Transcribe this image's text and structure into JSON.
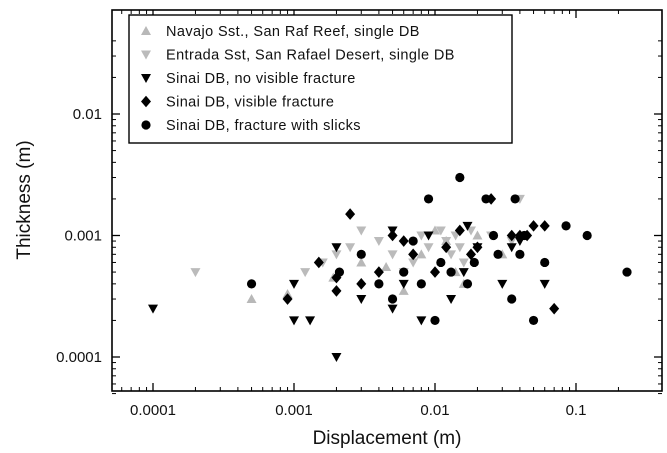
{
  "chart_data": {
    "type": "scatter",
    "xlabel": "Displacement (m)",
    "ylabel": "Thickness (m)",
    "x_scale": "log",
    "y_scale": "log",
    "xlim": [
      5e-05,
      0.3
    ],
    "ylim": [
      4e-05,
      0.05
    ],
    "x_ticks": [
      0.0001,
      0.001,
      0.01,
      0.1
    ],
    "x_tick_labels": [
      "0.0001",
      "0.001",
      "0.01",
      "0.1"
    ],
    "y_ticks": [
      0.0001,
      0.001,
      0.01
    ],
    "y_tick_labels": [
      "0.0001",
      "0.001",
      "0.01"
    ],
    "grid": false,
    "legend_position": "top-left",
    "series": [
      {
        "name": "Navajo Sst., San Raf Reef, single DB",
        "marker": "triangle-up",
        "color": "#b8b8b8",
        "points": [
          [
            0.0005,
            0.0003
          ],
          [
            0.0009,
            0.00033
          ],
          [
            0.0019,
            0.00045
          ],
          [
            0.003,
            0.0006
          ],
          [
            0.0045,
            0.00055
          ],
          [
            0.006,
            0.00035
          ],
          [
            0.008,
            0.0007
          ],
          [
            0.01,
            0.0011
          ],
          [
            0.012,
            0.0009
          ],
          [
            0.014,
            0.0005
          ],
          [
            0.016,
            0.0004
          ],
          [
            0.02,
            0.001
          ],
          [
            0.03,
            0.0007
          ]
        ]
      },
      {
        "name": "Entrada Sst, San Rafael Desert, single DB",
        "marker": "triangle-down",
        "color": "#bbbbbb",
        "points": [
          [
            0.0002,
            0.0005
          ],
          [
            0.0012,
            0.0005
          ],
          [
            0.0016,
            0.0006
          ],
          [
            0.002,
            0.0007
          ],
          [
            0.0025,
            0.0008
          ],
          [
            0.003,
            0.0011
          ],
          [
            0.004,
            0.0009
          ],
          [
            0.005,
            0.0007
          ],
          [
            0.006,
            0.0005
          ],
          [
            0.007,
            0.0006
          ],
          [
            0.008,
            0.001
          ],
          [
            0.009,
            0.0008
          ],
          [
            0.011,
            0.0011
          ],
          [
            0.012,
            0.0009
          ],
          [
            0.013,
            0.0007
          ],
          [
            0.014,
            0.001
          ],
          [
            0.015,
            0.0008
          ],
          [
            0.016,
            0.0006
          ],
          [
            0.018,
            0.0011
          ],
          [
            0.025,
            0.001
          ],
          [
            0.035,
            0.0009
          ],
          [
            0.04,
            0.002
          ]
        ]
      },
      {
        "name": "Sinai DB, no visible fracture",
        "marker": "triangle-down",
        "color": "#000000",
        "points": [
          [
            0.0001,
            0.00025
          ],
          [
            0.001,
            0.0004
          ],
          [
            0.001,
            0.0002
          ],
          [
            0.0013,
            0.0002
          ],
          [
            0.002,
            0.0001
          ],
          [
            0.002,
            0.0008
          ],
          [
            0.003,
            0.0003
          ],
          [
            0.005,
            0.00025
          ],
          [
            0.005,
            0.0011
          ],
          [
            0.006,
            0.0004
          ],
          [
            0.008,
            0.0002
          ],
          [
            0.009,
            0.001
          ],
          [
            0.013,
            0.0003
          ],
          [
            0.016,
            0.0005
          ],
          [
            0.017,
            0.0012
          ],
          [
            0.02,
            0.0008
          ],
          [
            0.03,
            0.0004
          ],
          [
            0.035,
            0.0008
          ],
          [
            0.04,
            0.0009
          ],
          [
            0.06,
            0.0004
          ]
        ]
      },
      {
        "name": "Sinai DB, visible fracture",
        "marker": "diamond",
        "color": "#000000",
        "points": [
          [
            0.0009,
            0.0003
          ],
          [
            0.0015,
            0.0006
          ],
          [
            0.002,
            0.00035
          ],
          [
            0.002,
            0.00045
          ],
          [
            0.0025,
            0.0015
          ],
          [
            0.003,
            0.0004
          ],
          [
            0.004,
            0.0005
          ],
          [
            0.005,
            0.001
          ],
          [
            0.006,
            0.0009
          ],
          [
            0.007,
            0.0007
          ],
          [
            0.01,
            0.0005
          ],
          [
            0.012,
            0.0008
          ],
          [
            0.015,
            0.0011
          ],
          [
            0.018,
            0.0007
          ],
          [
            0.02,
            0.0008
          ],
          [
            0.025,
            0.002
          ],
          [
            0.035,
            0.001
          ],
          [
            0.04,
            0.001
          ],
          [
            0.045,
            0.001
          ],
          [
            0.05,
            0.0012
          ],
          [
            0.06,
            0.0012
          ],
          [
            0.07,
            0.00025
          ]
        ]
      },
      {
        "name": "Sinai DB, fracture with slicks",
        "marker": "circle",
        "color": "#000000",
        "points": [
          [
            0.0005,
            0.0004
          ],
          [
            0.0021,
            0.0005
          ],
          [
            0.003,
            0.0007
          ],
          [
            0.004,
            0.0004
          ],
          [
            0.005,
            0.0003
          ],
          [
            0.006,
            0.0005
          ],
          [
            0.007,
            0.0009
          ],
          [
            0.008,
            0.0004
          ],
          [
            0.009,
            0.002
          ],
          [
            0.01,
            0.0002
          ],
          [
            0.011,
            0.0006
          ],
          [
            0.013,
            0.0005
          ],
          [
            0.015,
            0.003
          ],
          [
            0.017,
            0.0004
          ],
          [
            0.019,
            0.0006
          ],
          [
            0.023,
            0.002
          ],
          [
            0.026,
            0.001
          ],
          [
            0.028,
            0.0007
          ],
          [
            0.035,
            0.0003
          ],
          [
            0.037,
            0.002
          ],
          [
            0.04,
            0.0007
          ],
          [
            0.043,
            0.001
          ],
          [
            0.05,
            0.0002
          ],
          [
            0.06,
            0.0006
          ],
          [
            0.085,
            0.0012
          ],
          [
            0.12,
            0.001
          ],
          [
            0.23,
            0.0005
          ]
        ]
      }
    ]
  }
}
